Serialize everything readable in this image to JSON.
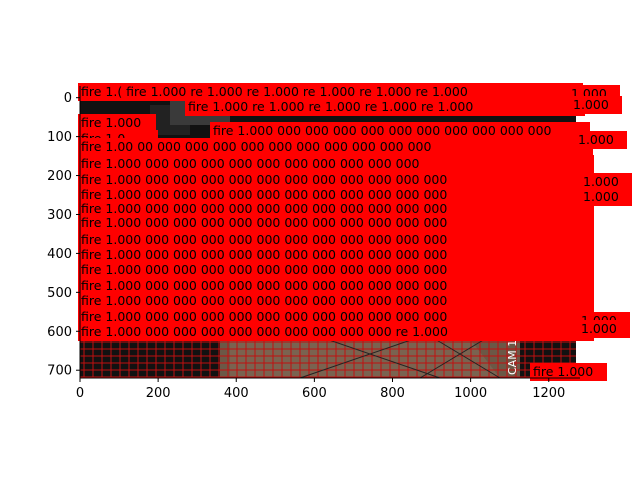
{
  "figure": {
    "background": "#ffffff",
    "axes_color": "#000000",
    "x_axis": {
      "ticks": [
        0,
        200,
        400,
        600,
        800,
        1000,
        1200
      ],
      "range": [
        0,
        1280
      ]
    },
    "y_axis": {
      "ticks": [
        0,
        100,
        200,
        300,
        400,
        500,
        600,
        700
      ],
      "range": [
        720,
        -30
      ],
      "inverted": true
    }
  },
  "image": {
    "scene": "dark surveillance frame with red box grid overlay",
    "overlay_text": "CAM 18"
  },
  "detections": {
    "label_text": "fire 1.000",
    "box_color": "#ff0000",
    "rows_full": [
      "fire 1.000 000 000 000 000 000 000 000 000 000 000",
      "fire 1.000 000 000 000 000 000 000 000 000 000 000 000",
      "fire 1.000 000 000 000 000 000 000 000 000 000 000 000",
      "fire 1.000 000 000 000 000 000 000 000 000 000 000 000",
      "fire 1.000 000 000 000 000 000 000 000 000 000 000 000",
      "fire 1.000 000 000 000 000 000 000 000 000 000 000 000",
      "fire 1.000 000 000 000 000 000 000 000 000 000 000 000",
      "fire 1.000 000 000 000 000 000 000 000 000 000 000 000",
      "fire 1.000 000 000 000 000 000 000 000 000 000 000 000",
      "fire 1.000 000 000 000 000 000 000 000 000 000 000 000",
      "fire 1.000 000 000 000 000 000 000 000 000 000 000 000",
      "fire 1.000 000 000 000 000 000 000 000 000 000 re 1.000",
      "fire 1.000 000 000 000 000 000 000 000 000 000 000 000"
    ],
    "row_top": "fire 1.( fire 1.000 re 1.000 re 1.000 re 1.000 re 1.000 re 1.000",
    "row_second": "fire 1.000 re 1.000 re 1.000 re 1.000 re 1.000",
    "row_third": "fire 1.000 000 000 000 000 000 000 000 000 000 000",
    "short_label": "fire 1.000",
    "right_labels": [
      "1.000",
      "1.000",
      "1.000",
      "1.000",
      "1.000",
      "1.000",
      "1.000"
    ],
    "bottom_label": "fire 1.000",
    "partial_label": "fire 1.0",
    "row_after_short": "fire 1.00 00 000 000 000 000 000 000 000 000 000 000"
  }
}
